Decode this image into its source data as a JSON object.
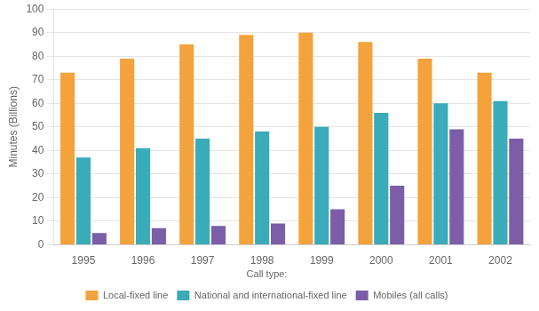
{
  "chart_data": {
    "type": "bar",
    "categories": [
      "1995",
      "1996",
      "1997",
      "1998",
      "1999",
      "2000",
      "2001",
      "2002"
    ],
    "series": [
      {
        "name": "Local-fixed line",
        "color": "#F4A23C",
        "values": [
          73,
          79,
          85,
          89,
          90,
          86,
          79,
          73
        ]
      },
      {
        "name": "National and international-fixed line",
        "color": "#3AABB8",
        "values": [
          37,
          41,
          45,
          48,
          50,
          56,
          60,
          61
        ]
      },
      {
        "name": "Mobiles (all calls)",
        "color": "#7B5EA7",
        "values": [
          5,
          7,
          8,
          9,
          15,
          25,
          49,
          45
        ]
      }
    ],
    "ylabel": "Minutes (Billions)",
    "ylim": [
      0,
      100
    ],
    "yticks": [
      0,
      10,
      20,
      30,
      40,
      50,
      60,
      70,
      80,
      90,
      100
    ],
    "grid": true,
    "legend": "bottom",
    "legend_title": "Call type:"
  }
}
